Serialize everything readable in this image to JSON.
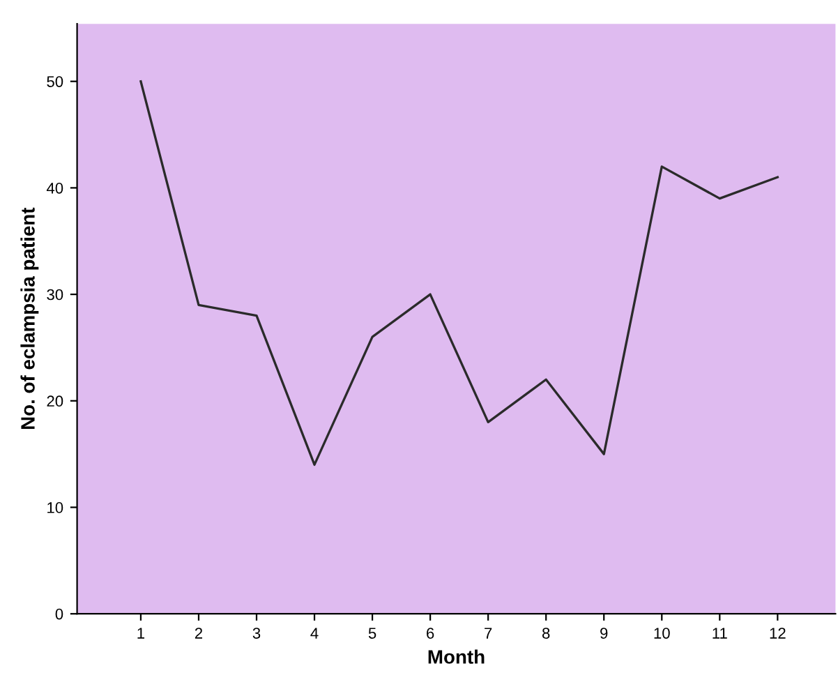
{
  "chart_data": {
    "type": "line",
    "xlabel": "Month",
    "ylabel": "No. of eclampsia patient",
    "x": [
      1,
      2,
      3,
      4,
      5,
      6,
      7,
      8,
      9,
      10,
      11,
      12
    ],
    "series": [
      {
        "color": "#2b2b2b",
        "values": [
          50,
          29,
          28,
          14,
          26,
          30,
          18,
          22,
          15,
          42,
          39,
          41
        ]
      }
    ],
    "xlim": [
      -0.1,
      13
    ],
    "xticks": [
      1,
      2,
      3,
      4,
      5,
      6,
      7,
      8,
      9,
      10,
      11,
      12
    ],
    "ylim": [
      0,
      55.4
    ],
    "yticks": [
      0,
      10,
      20,
      30,
      40,
      50
    ],
    "grid": false,
    "marker": "none",
    "line_style": "solid"
  }
}
